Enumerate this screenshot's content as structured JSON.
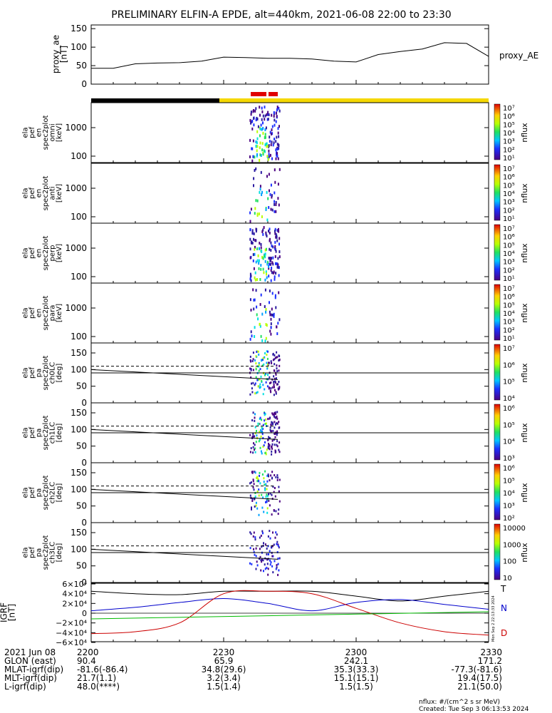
{
  "title": "PRELIMINARY ELFIN-A EPDE, alt=440km, 2021-06-08 22:00 to 23:30",
  "ae_panel": {
    "label_lines": [
      "proxy_ae",
      "[nT]"
    ],
    "right_label": "proxy_AE",
    "yticks": [
      "150",
      "100",
      "50",
      "0"
    ],
    "ylim": [
      0,
      160
    ]
  },
  "spectrogram_panels": [
    {
      "label_lines": [
        "ela",
        "pef",
        "en",
        "spec2plot",
        "omni",
        "[keV]"
      ],
      "yticks": [
        "1000",
        "100"
      ],
      "cbar_ticks": [
        "10⁷",
        "10⁶",
        "10⁵",
        "10⁴",
        "10³",
        "10²",
        "10¹"
      ],
      "cbar_label": "nflux"
    },
    {
      "label_lines": [
        "ela",
        "pef",
        "en",
        "spec2plot",
        "anti",
        "[keV]"
      ],
      "yticks": [
        "1000",
        "100"
      ],
      "cbar_ticks": [
        "10⁷",
        "10⁶",
        "10⁵",
        "10⁴",
        "10³",
        "10²",
        "10¹"
      ],
      "cbar_label": "nflux"
    },
    {
      "label_lines": [
        "ela",
        "pef",
        "en",
        "spec2plot",
        "perp",
        "[keV]"
      ],
      "yticks": [
        "1000",
        "100"
      ],
      "cbar_ticks": [
        "10⁷",
        "10⁶",
        "10⁵",
        "10⁴",
        "10³",
        "10²",
        "10¹"
      ],
      "cbar_label": "nflux"
    },
    {
      "label_lines": [
        "ela",
        "pef",
        "en",
        "spec2plot",
        "para",
        "[keV]"
      ],
      "yticks": [
        "1000",
        "100"
      ],
      "cbar_ticks": [
        "10⁷",
        "10⁶",
        "10⁵",
        "10⁴",
        "10³",
        "10²",
        "10¹"
      ],
      "cbar_label": "nflux"
    },
    {
      "label_lines": [
        "ela",
        "pef",
        "pa",
        "spec2plot",
        "ch0LC",
        "[deg]"
      ],
      "yticks": [
        "150",
        "100",
        "50",
        "0"
      ],
      "cbar_ticks": [
        "10⁷",
        "10⁶",
        "10⁵",
        "10⁴"
      ],
      "cbar_label": "nflux"
    },
    {
      "label_lines": [
        "ela",
        "pef",
        "pa",
        "spec2plot",
        "ch1LC",
        "[deg]"
      ],
      "yticks": [
        "150",
        "100",
        "50",
        "0"
      ],
      "cbar_ticks": [
        "10⁶",
        "10⁵",
        "10⁴",
        "10³"
      ],
      "cbar_label": "nflux"
    },
    {
      "label_lines": [
        "ela",
        "pef",
        "pa",
        "spec2plot",
        "ch2LC",
        "[deg]"
      ],
      "yticks": [
        "150",
        "100",
        "50",
        "0"
      ],
      "cbar_ticks": [
        "10⁶",
        "10⁵",
        "10⁴",
        "10³",
        "10²"
      ],
      "cbar_label": "nflux"
    },
    {
      "label_lines": [
        "ela",
        "pef",
        "pa",
        "spec2plot",
        "ch3LC",
        "[deg]"
      ],
      "yticks": [
        "150",
        "100",
        "50",
        "0"
      ],
      "cbar_ticks": [
        "10000",
        "1000",
        "100",
        "10"
      ],
      "cbar_label": "nflux"
    }
  ],
  "igrf_panel": {
    "label_lines": [
      "IGRF",
      "[nT]"
    ],
    "yticks": [
      "6×10⁴",
      "4×10⁴",
      "2×10⁴",
      "0",
      "−2×10⁴",
      "−4×10⁴",
      "−6×10⁴"
    ],
    "component_labels": [
      "T",
      "N",
      "D"
    ],
    "side_note": "Mon Sep  2 22:13:33 2024"
  },
  "footer": {
    "rows": [
      {
        "label": "2021 Jun 08",
        "values": [
          "2200",
          "2230",
          "2300",
          "2330"
        ]
      },
      {
        "label": "GLON (east)",
        "values": [
          "90.4",
          "65.9",
          "242.1",
          "171.2"
        ]
      },
      {
        "label": "MLAT-igrf(dip)",
        "values": [
          "-81.6(-86.4)",
          "34.8(29.6)",
          "35.3(33.3)",
          "-77.3(-81.6)"
        ]
      },
      {
        "label": "MLT-igrf(dip)",
        "values": [
          "21.7(1.1)",
          "3.2(3.4)",
          "15.1(15.1)",
          "19.4(17.5)"
        ]
      },
      {
        "label": "L-igrf(dip)",
        "values": [
          "48.0(****)",
          "1.5(1.4)",
          "1.5(1.5)",
          "21.1(50.0)"
        ]
      }
    ],
    "note_line1": "nflux: #/(cm^2 s sr MeV)",
    "note_line2": "Created: Tue Sep  3 06:13:53 2024"
  },
  "colors": {
    "black_bar": "#000000",
    "yellow_bar": "#f5d800",
    "red_bar": "#e00000",
    "igrf_T": "#000000",
    "igrf_N": "#0000cc",
    "igrf_D": "#cc0000",
    "igrf_green": "#00bb00"
  },
  "chart_data": [
    {
      "type": "line",
      "xlabel": "",
      "ylabel": "proxy_ae [nT]",
      "x": [
        "2200",
        "2205",
        "2210",
        "2215",
        "2220",
        "2225",
        "2230",
        "2235",
        "2240",
        "2245",
        "2250",
        "2255",
        "2300",
        "2305",
        "2310",
        "2315",
        "2320",
        "2325",
        "2330"
      ],
      "series": [
        {
          "name": "proxy_AE",
          "values": [
            43,
            43,
            55,
            57,
            58,
            62,
            73,
            72,
            70,
            70,
            68,
            62,
            60,
            80,
            88,
            95,
            112,
            110,
            75
          ]
        }
      ],
      "ylim": [
        0,
        160
      ]
    },
    {
      "type": "line",
      "ylabel": "IGRF [nT]",
      "x": [
        "2200",
        "2210",
        "2220",
        "2230",
        "2240",
        "2250",
        "2300",
        "2310",
        "2320",
        "2330"
      ],
      "series": [
        {
          "name": "T",
          "values": [
            45000,
            40000,
            38000,
            45000,
            45000,
            45000,
            35000,
            25000,
            35000,
            45000
          ]
        },
        {
          "name": "N",
          "values": [
            5000,
            12000,
            22000,
            30000,
            20000,
            5000,
            22000,
            28000,
            18000,
            8000
          ]
        },
        {
          "name": "D",
          "values": [
            -42000,
            -38000,
            -20000,
            40000,
            45000,
            40000,
            10000,
            -20000,
            -38000,
            -45000
          ]
        }
      ],
      "ylim": [
        -60000,
        60000
      ]
    }
  ]
}
